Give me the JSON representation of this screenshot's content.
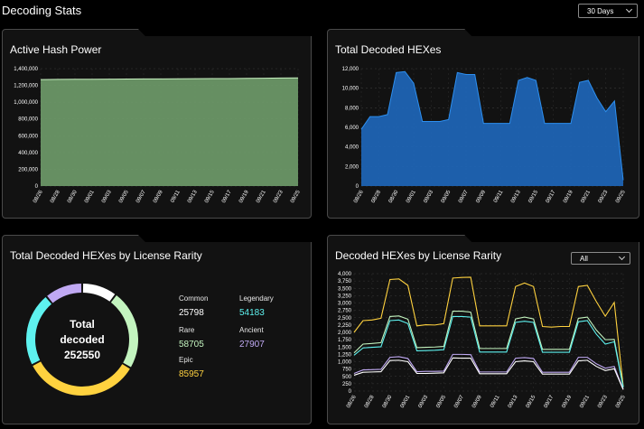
{
  "page": {
    "title": "Decoding Stats"
  },
  "range_select": {
    "value": "30 Days"
  },
  "panels": {
    "hash_power": {
      "title": "Active Hash Power"
    },
    "total_decoded": {
      "title": "Total Decoded HEXes"
    },
    "by_rarity": {
      "title": "Total Decoded HEXes by License Rarity"
    },
    "rarity_series": {
      "title": "Decoded HEXes by License Rarity",
      "filter_value": "All"
    }
  },
  "donut": {
    "center_line1": "Total",
    "center_line2": "decoded",
    "center_value": "252550"
  },
  "legend": {
    "common": {
      "label": "Common",
      "value": "25798",
      "color": "#ffffff"
    },
    "legendary": {
      "label": "Legendary",
      "value": "54183",
      "color": "#5ef2ef"
    },
    "rare": {
      "label": "Rare",
      "value": "58705",
      "color": "#c3f4bf"
    },
    "ancient": {
      "label": "Ancient",
      "value": "27907",
      "color": "#c0a9f3"
    },
    "epic": {
      "label": "Epic",
      "value": "85957",
      "color": "#ffd23f"
    }
  },
  "colors": {
    "hash_fill": "#6e9a69",
    "hash_line": "#c9f2c2",
    "blue_fill": "#1f64b4",
    "blue_line": "#2d8ff0",
    "panel_border": "#4a4a4a"
  },
  "chart_data": [
    {
      "type": "area",
      "title": "Active Hash Power",
      "x": [
        "08/26",
        "08/28",
        "08/30",
        "09/01",
        "09/03",
        "09/05",
        "09/07",
        "09/09",
        "09/11",
        "09/13",
        "09/15",
        "09/17",
        "09/19",
        "09/21",
        "09/23",
        "09/25"
      ],
      "values": [
        1270000,
        1272000,
        1273000,
        1274000,
        1275000,
        1276000,
        1277000,
        1278000,
        1279000,
        1280000,
        1281000,
        1282000,
        1284000,
        1286000,
        1288000,
        1290000
      ],
      "ylim": [
        0,
        1400000
      ],
      "yticks": [
        "0",
        "200,000",
        "400,000",
        "600,000",
        "800,000",
        "1,000,000",
        "1,200,000",
        "1,400,000"
      ],
      "xticks": [
        "08/26",
        "08/28",
        "08/30",
        "09/01",
        "09/03",
        "09/05",
        "09/07",
        "09/09",
        "09/11",
        "09/13",
        "09/15",
        "09/17",
        "09/19",
        "09/21",
        "09/23",
        "09/25"
      ]
    },
    {
      "type": "area",
      "title": "Total Decoded HEXes",
      "values": [
        5800,
        7100,
        7100,
        7300,
        11600,
        11700,
        10500,
        6600,
        6600,
        6600,
        6800,
        11600,
        11400,
        11400,
        6400,
        6400,
        6400,
        6400,
        10800,
        11100,
        10800,
        6400,
        6400,
        6400,
        6400,
        10600,
        10800,
        9000,
        7600,
        8700,
        600
      ],
      "ylim": [
        0,
        12000
      ],
      "yticks": [
        "0",
        "2,000",
        "4,000",
        "6,000",
        "8,000",
        "10,000",
        "12,000"
      ],
      "xticks": [
        "08/26",
        "08/28",
        "08/30",
        "09/01",
        "09/03",
        "09/05",
        "09/07",
        "09/09",
        "09/11",
        "09/13",
        "09/15",
        "09/17",
        "09/19",
        "09/21",
        "09/23",
        "09/25"
      ]
    },
    {
      "type": "pie",
      "title": "Total Decoded HEXes by License Rarity",
      "categories": [
        "Common",
        "Rare",
        "Epic",
        "Legendary",
        "Ancient"
      ],
      "values": [
        25798,
        58705,
        85957,
        54183,
        27907
      ]
    },
    {
      "type": "line",
      "title": "Decoded HEXes by License Rarity",
      "ylim": [
        0,
        4000
      ],
      "yticks": [
        "0",
        "250",
        "500",
        "750",
        "1,000",
        "1,250",
        "1,500",
        "1,750",
        "2,000",
        "2,250",
        "2,500",
        "2,750",
        "3,000",
        "3,250",
        "3,500",
        "3,750",
        "4,000"
      ],
      "xticks": [
        "08/26",
        "08/28",
        "08/30",
        "09/01",
        "09/03",
        "09/05",
        "09/07",
        "09/09",
        "09/11",
        "09/13",
        "09/15",
        "09/17",
        "09/19",
        "09/21",
        "09/23",
        "09/25"
      ],
      "series": [
        {
          "name": "Epic",
          "color": "#ffd23f",
          "values": [
            2000,
            2400,
            2420,
            2480,
            3800,
            3820,
            3600,
            2220,
            2260,
            2250,
            2300,
            3850,
            3870,
            3880,
            2220,
            2220,
            2220,
            2220,
            3560,
            3680,
            3560,
            2200,
            2180,
            2200,
            2200,
            3560,
            3600,
            3050,
            2550,
            3020,
            150
          ]
        },
        {
          "name": "Rare",
          "color": "#c3f4bf",
          "values": [
            1300,
            1600,
            1620,
            1650,
            2540,
            2560,
            2450,
            1480,
            1490,
            1500,
            1520,
            2720,
            2720,
            2690,
            1450,
            1450,
            1450,
            1450,
            2460,
            2520,
            2460,
            1420,
            1420,
            1420,
            1420,
            2480,
            2520,
            2080,
            1750,
            1760,
            150
          ]
        },
        {
          "name": "Legendary",
          "color": "#5ef2ef",
          "values": [
            1220,
            1470,
            1490,
            1510,
            2400,
            2420,
            2300,
            1370,
            1380,
            1390,
            1410,
            2540,
            2540,
            2520,
            1330,
            1330,
            1330,
            1330,
            2340,
            2380,
            2340,
            1320,
            1320,
            1320,
            1320,
            2360,
            2400,
            1940,
            1600,
            1680,
            120
          ]
        },
        {
          "name": "Ancient",
          "color": "#c0a9f3",
          "values": [
            600,
            720,
            730,
            740,
            1150,
            1170,
            1110,
            660,
            670,
            670,
            680,
            1250,
            1250,
            1240,
            650,
            650,
            650,
            650,
            1120,
            1140,
            1110,
            640,
            640,
            640,
            640,
            1150,
            1150,
            930,
            780,
            840,
            60
          ]
        },
        {
          "name": "Common",
          "color": "#ffffff",
          "values": [
            540,
            640,
            650,
            660,
            1040,
            1050,
            1000,
            600,
            600,
            610,
            620,
            1130,
            1120,
            1120,
            590,
            590,
            590,
            590,
            1000,
            1030,
            1000,
            580,
            580,
            580,
            580,
            1030,
            1050,
            840,
            700,
            760,
            50
          ]
        }
      ]
    }
  ]
}
